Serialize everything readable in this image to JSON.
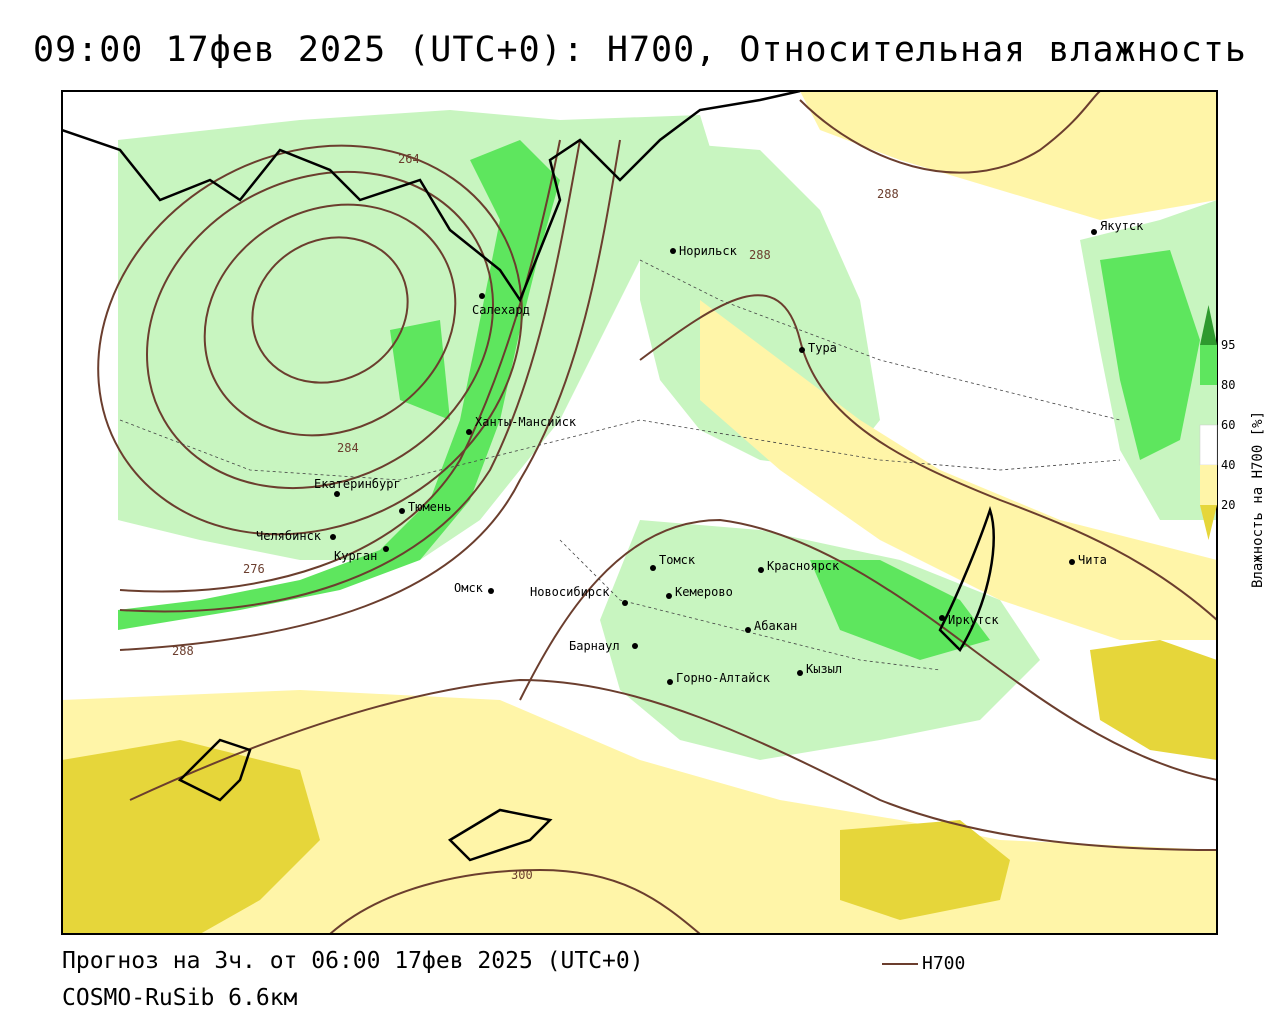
{
  "title": "09:00 17фев 2025 (UTC+0): H700, Относительная влажность",
  "footer": {
    "forecast": "Прогноз на 3ч. от 06:00 17фев 2025 (UTC+0)",
    "model": "COSMO-RuSib 6.6км"
  },
  "legend": {
    "line_label": "H700",
    "line_color": "#6b3e2e"
  },
  "colorbar": {
    "title": "Влажность на H700 [%]",
    "ticks": [
      "95",
      "80",
      "60",
      "40",
      "20"
    ],
    "colors": {
      "very_dry": "#e6d63a",
      "dry": "#fff5a8",
      "low": "#ffffff",
      "mid": "#c8f5c0",
      "high": "#5ee65e",
      "very_high": "#2e9a2e"
    }
  },
  "cities": [
    {
      "name": "Салехард"
    },
    {
      "name": "Норильск"
    },
    {
      "name": "Якутск"
    },
    {
      "name": "Тура"
    },
    {
      "name": "Ханты-Мансийск"
    },
    {
      "name": "Екатеринбург"
    },
    {
      "name": "Тюмень"
    },
    {
      "name": "Челябинск"
    },
    {
      "name": "Курган"
    },
    {
      "name": "Омск"
    },
    {
      "name": "Новосибирск"
    },
    {
      "name": "Томск"
    },
    {
      "name": "Кемерово"
    },
    {
      "name": "Барнаул"
    },
    {
      "name": "Красноярск"
    },
    {
      "name": "Абакан"
    },
    {
      "name": "Кызыл"
    },
    {
      "name": "Горно-Алтайск"
    },
    {
      "name": "Иркутск"
    },
    {
      "name": "Чита"
    }
  ],
  "isoline_labels": [
    "264",
    "288",
    "284",
    "276",
    "288",
    "288",
    "300"
  ]
}
